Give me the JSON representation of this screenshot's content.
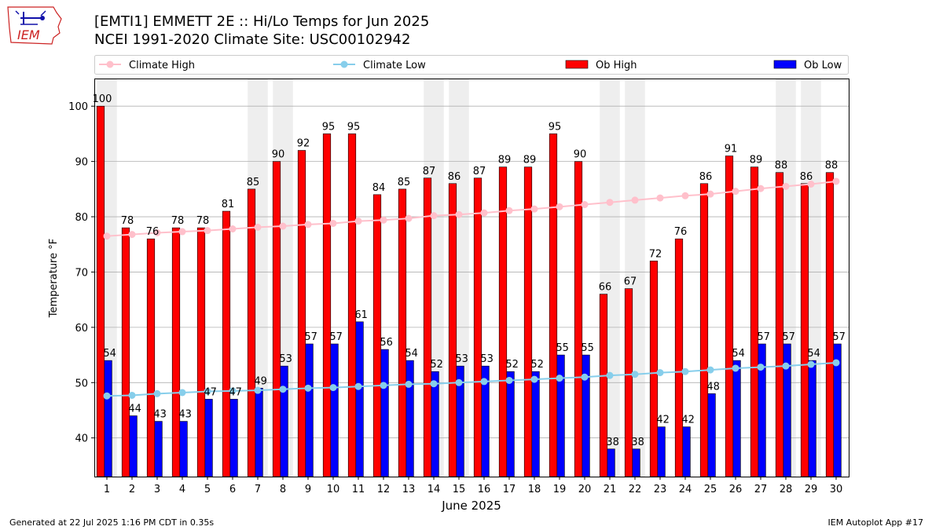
{
  "header": {
    "title_line1": "[EMTI1] EMMETT 2E :: Hi/Lo Temps for Jun 2025",
    "title_line2": "NCEI 1991-2020 Climate Site: USC00102942",
    "logo_text": "IEM"
  },
  "footer": {
    "generated": "Generated at 22 Jul 2025 1:16 PM CDT in 0.35s",
    "app": "IEM Autoplot App #17"
  },
  "colors": {
    "ob_high": "#ff0000",
    "ob_low": "#0000ff",
    "climate_high": "#ffc0cb",
    "climate_low": "#87ceeb",
    "weekend_shade": "#eeeeee",
    "logo": "#cc2222"
  },
  "chart_data": {
    "type": "bar",
    "xlabel": "June 2025",
    "ylabel": "Temperature °F",
    "ylim": [
      33,
      105
    ],
    "yticks": [
      40,
      50,
      60,
      70,
      80,
      90,
      100
    ],
    "grid": "y",
    "legend": [
      "Climate High",
      "Climate Low",
      "Ob High",
      "Ob Low"
    ],
    "legend_position": "top",
    "categories": [
      "1",
      "2",
      "3",
      "4",
      "5",
      "6",
      "7",
      "8",
      "9",
      "10",
      "11",
      "12",
      "13",
      "14",
      "15",
      "16",
      "17",
      "18",
      "19",
      "20",
      "21",
      "22",
      "23",
      "24",
      "25",
      "26",
      "27",
      "28",
      "29",
      "30"
    ],
    "shaded_days": [
      1,
      7,
      8,
      14,
      15,
      21,
      22,
      28,
      29
    ],
    "series": [
      {
        "name": "Ob High",
        "kind": "bar",
        "values": [
          100,
          78,
          76,
          78,
          78,
          81,
          85,
          90,
          92,
          95,
          95,
          84,
          85,
          87,
          86,
          87,
          89,
          89,
          95,
          90,
          66,
          67,
          72,
          76,
          86,
          91,
          89,
          88,
          86,
          88
        ]
      },
      {
        "name": "Ob Low",
        "kind": "bar",
        "values": [
          54,
          44,
          43,
          43,
          47,
          47,
          49,
          53,
          57,
          57,
          61,
          56,
          54,
          52,
          53,
          53,
          52,
          52,
          55,
          55,
          38,
          38,
          42,
          42,
          48,
          54,
          57,
          57,
          54,
          57
        ]
      },
      {
        "name": "Climate High",
        "kind": "line",
        "values": [
          76.5,
          76.8,
          77.1,
          77.3,
          77.5,
          77.8,
          78.1,
          78.3,
          78.6,
          78.8,
          79.2,
          79.4,
          79.7,
          80.2,
          80.4,
          80.7,
          81.1,
          81.4,
          81.8,
          82.2,
          82.6,
          83.0,
          83.4,
          83.8,
          84.1,
          84.6,
          85.1,
          85.5,
          85.9,
          86.4
        ]
      },
      {
        "name": "Climate Low",
        "kind": "line",
        "values": [
          47.6,
          47.7,
          48.0,
          48.2,
          48.4,
          48.5,
          48.6,
          48.8,
          49.0,
          49.1,
          49.3,
          49.5,
          49.7,
          49.8,
          50.0,
          50.2,
          50.4,
          50.6,
          50.8,
          51.0,
          51.3,
          51.5,
          51.8,
          52.0,
          52.3,
          52.6,
          52.8,
          53.0,
          53.3,
          53.6
        ]
      }
    ]
  }
}
